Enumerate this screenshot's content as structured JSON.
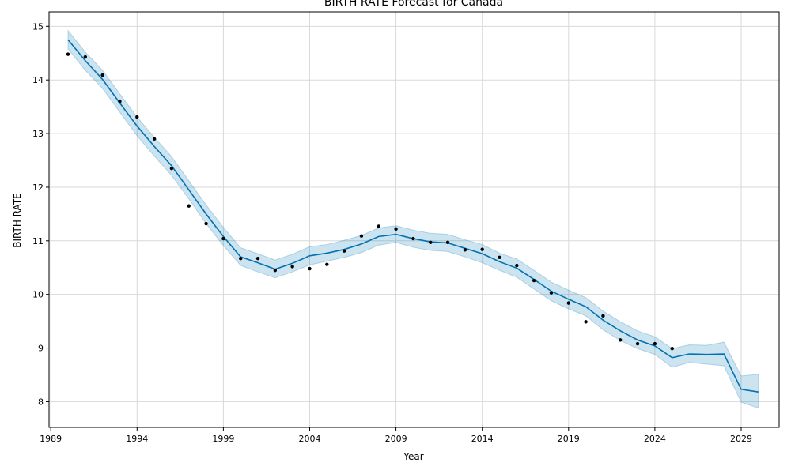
{
  "chart_data": {
    "type": "line",
    "title": "BIRTH RATE Forecast for Canada",
    "xlabel": "Year",
    "ylabel": "BIRTH RATE",
    "xlim": [
      1988.9,
      2031.2
    ],
    "ylim": [
      7.52,
      15.27
    ],
    "grid": true,
    "x_ticks": [
      "1989",
      "1994",
      "1999",
      "2004",
      "2009",
      "2014",
      "2019",
      "2024",
      "2029"
    ],
    "x_tick_values": [
      1989,
      1994,
      1999,
      2004,
      2009,
      2014,
      2019,
      2024,
      2029
    ],
    "y_ticks": [
      "8",
      "9",
      "10",
      "11",
      "12",
      "13",
      "14",
      "15"
    ],
    "y_tick_values": [
      8,
      9,
      10,
      11,
      12,
      13,
      14,
      15
    ],
    "observed": {
      "x": [
        1990,
        1991,
        1992,
        1993,
        1994,
        1995,
        1996,
        1997,
        1998,
        1999,
        2000,
        2001,
        2002,
        2003,
        2004,
        2005,
        2006,
        2007,
        2008,
        2009,
        2010,
        2011,
        2012,
        2013,
        2014,
        2015,
        2016,
        2017,
        2018,
        2019,
        2020,
        2021,
        2022,
        2023,
        2024,
        2025
      ],
      "y": [
        14.48,
        14.43,
        14.09,
        13.6,
        13.31,
        12.9,
        12.35,
        11.65,
        11.32,
        11.04,
        10.67,
        10.67,
        10.45,
        10.52,
        10.48,
        10.56,
        10.81,
        11.09,
        11.27,
        11.22,
        11.04,
        10.97,
        10.97,
        10.83,
        10.84,
        10.69,
        10.54,
        10.26,
        10.03,
        9.84,
        9.49,
        9.6,
        9.15,
        9.08,
        9.08,
        8.99
      ]
    },
    "forecast": {
      "x": [
        1990,
        1991,
        1992,
        1993,
        1994,
        1995,
        1996,
        1997,
        1998,
        1999,
        2000,
        2001,
        2002,
        2003,
        2004,
        2005,
        2006,
        2007,
        2008,
        2009,
        2010,
        2011,
        2012,
        2013,
        2014,
        2015,
        2016,
        2017,
        2018,
        2019,
        2020,
        2021,
        2022,
        2023,
        2024,
        2025,
        2026,
        2027,
        2028,
        2029,
        2030
      ],
      "yhat": [
        14.75,
        14.36,
        14.01,
        13.57,
        13.14,
        12.76,
        12.4,
        11.95,
        11.5,
        11.08,
        10.7,
        10.59,
        10.47,
        10.58,
        10.72,
        10.77,
        10.84,
        10.94,
        11.08,
        11.12,
        11.04,
        10.98,
        10.96,
        10.86,
        10.76,
        10.61,
        10.49,
        10.28,
        10.06,
        9.91,
        9.77,
        9.52,
        9.32,
        9.15,
        9.04,
        8.82,
        8.89,
        8.88,
        8.89,
        8.23,
        8.18
      ],
      "lower": [
        14.58,
        14.18,
        13.84,
        13.4,
        12.96,
        12.58,
        12.22,
        11.78,
        11.32,
        10.91,
        10.54,
        10.42,
        10.31,
        10.42,
        10.55,
        10.62,
        10.69,
        10.78,
        10.92,
        10.97,
        10.88,
        10.82,
        10.8,
        10.7,
        10.59,
        10.45,
        10.32,
        10.1,
        9.88,
        9.73,
        9.6,
        9.34,
        9.14,
        8.99,
        8.88,
        8.64,
        8.73,
        8.7,
        8.67,
        7.99,
        7.88
      ],
      "upper": [
        14.92,
        14.52,
        14.18,
        13.74,
        13.31,
        12.93,
        12.57,
        12.12,
        11.67,
        11.25,
        10.87,
        10.76,
        10.64,
        10.75,
        10.89,
        10.93,
        11.01,
        11.1,
        11.24,
        11.28,
        11.2,
        11.14,
        11.12,
        11.02,
        10.93,
        10.77,
        10.66,
        10.45,
        10.23,
        10.08,
        9.94,
        9.69,
        9.49,
        9.32,
        9.21,
        8.99,
        9.06,
        9.05,
        9.11,
        8.48,
        8.51
      ]
    },
    "colors": {
      "line": "#0072B2",
      "band": "#0072B2",
      "points": "#000000",
      "grid": "#d9d9d9"
    }
  }
}
